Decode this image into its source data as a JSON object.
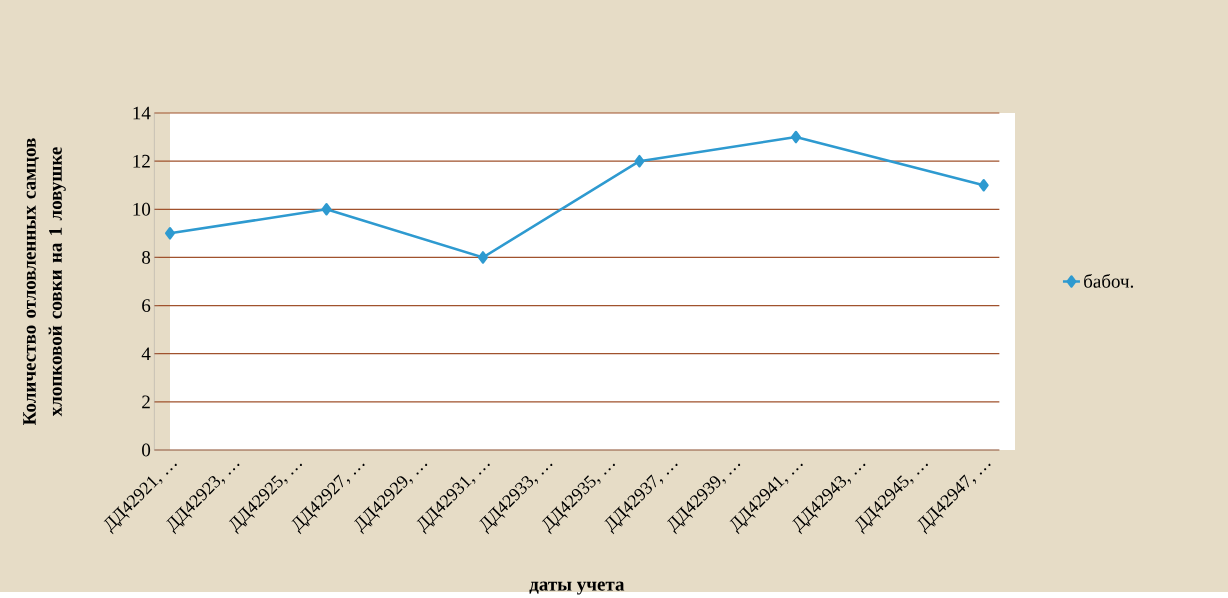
{
  "chart_data": {
    "type": "line",
    "xlabel": "даты учета",
    "ylabel": "Количество  отловленных  самцов хлопковой  совки на 1 ловушке",
    "categories": [
      "ДД42921, …",
      null,
      "ДД42923, …",
      null,
      "ДД42925, …",
      null,
      "ДД42927, …",
      null,
      "ДД42929, …",
      null,
      "ДД42931, …",
      null,
      "ДД42933, …",
      null,
      "ДД42935, …",
      null,
      "ДД42937, …",
      null,
      "ДД42939, …",
      null,
      "ДД42941, …",
      null,
      "ДД42943, …",
      null,
      "ДД42945, …",
      null,
      "ДД42947, …"
    ],
    "series": [
      {
        "name": "бабоч.",
        "color": "#2e9ad0",
        "values": [
          9,
          null,
          null,
          null,
          null,
          10,
          null,
          null,
          null,
          null,
          8,
          null,
          null,
          null,
          null,
          12,
          null,
          null,
          null,
          null,
          13,
          null,
          null,
          null,
          null,
          null,
          11
        ]
      }
    ],
    "ylim": [
      0,
      14
    ],
    "yticks": [
      0,
      2,
      4,
      6,
      8,
      10,
      12,
      14
    ],
    "grid": "y",
    "legend": "right",
    "marker": "diamond",
    "line_style": "solid"
  }
}
